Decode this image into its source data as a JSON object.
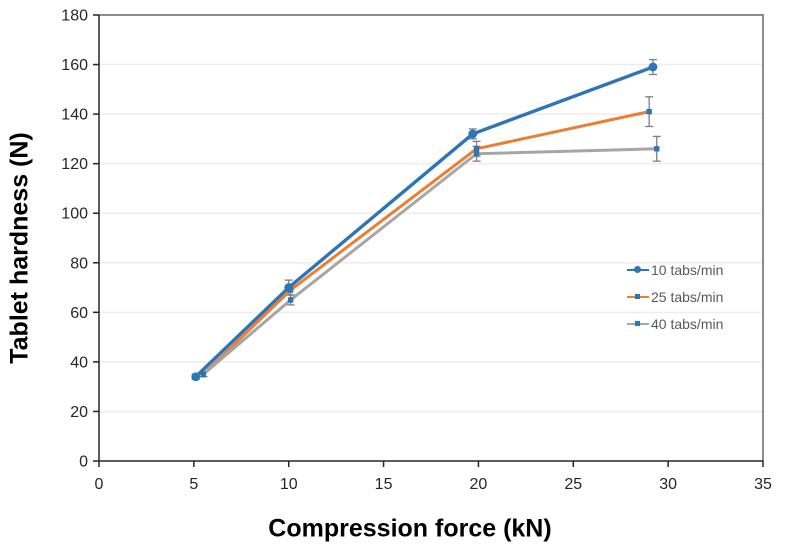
{
  "chart_data": {
    "type": "line",
    "title": "",
    "xlabel": "Compression force (kN)",
    "ylabel": "Tablet hardness (N)",
    "xlim": [
      0,
      35
    ],
    "xtick_step": 5,
    "ylim": [
      0,
      180
    ],
    "ytick_step": 20,
    "grid": "horizontal",
    "legend_position": "middle-right",
    "colors": {
      "axis": "#262626",
      "plot_border": "#8C8C8C",
      "gridline": "#EDEDED",
      "error_bar": "#7F7F7F",
      "tick_label": "#262626",
      "legend_text": "#595959"
    },
    "series": [
      {
        "name": "10 tabs/min",
        "color": "#2E75B6",
        "marker": "circle",
        "marker_color": "#2E75B6",
        "x": [
          5.1,
          10.0,
          19.7,
          29.2
        ],
        "y": [
          34,
          70,
          132,
          159
        ],
        "yerr": [
          1,
          3,
          2,
          3
        ]
      },
      {
        "name": "25 tabs/min",
        "color": "#ED7D31",
        "marker": "square",
        "marker_color": "#2E75B6",
        "x": [
          5.5,
          10.1,
          19.9,
          29.0
        ],
        "y": [
          35,
          69,
          126,
          141
        ],
        "yerr": [
          1,
          2,
          3,
          6
        ]
      },
      {
        "name": "40 tabs/min",
        "color": "#A6A6A6",
        "marker": "square",
        "marker_color": "#2E75B6",
        "x": [
          5.5,
          10.1,
          19.9,
          29.4
        ],
        "y": [
          35,
          65,
          124,
          126
        ],
        "yerr": [
          1,
          2,
          3,
          5
        ]
      }
    ]
  }
}
